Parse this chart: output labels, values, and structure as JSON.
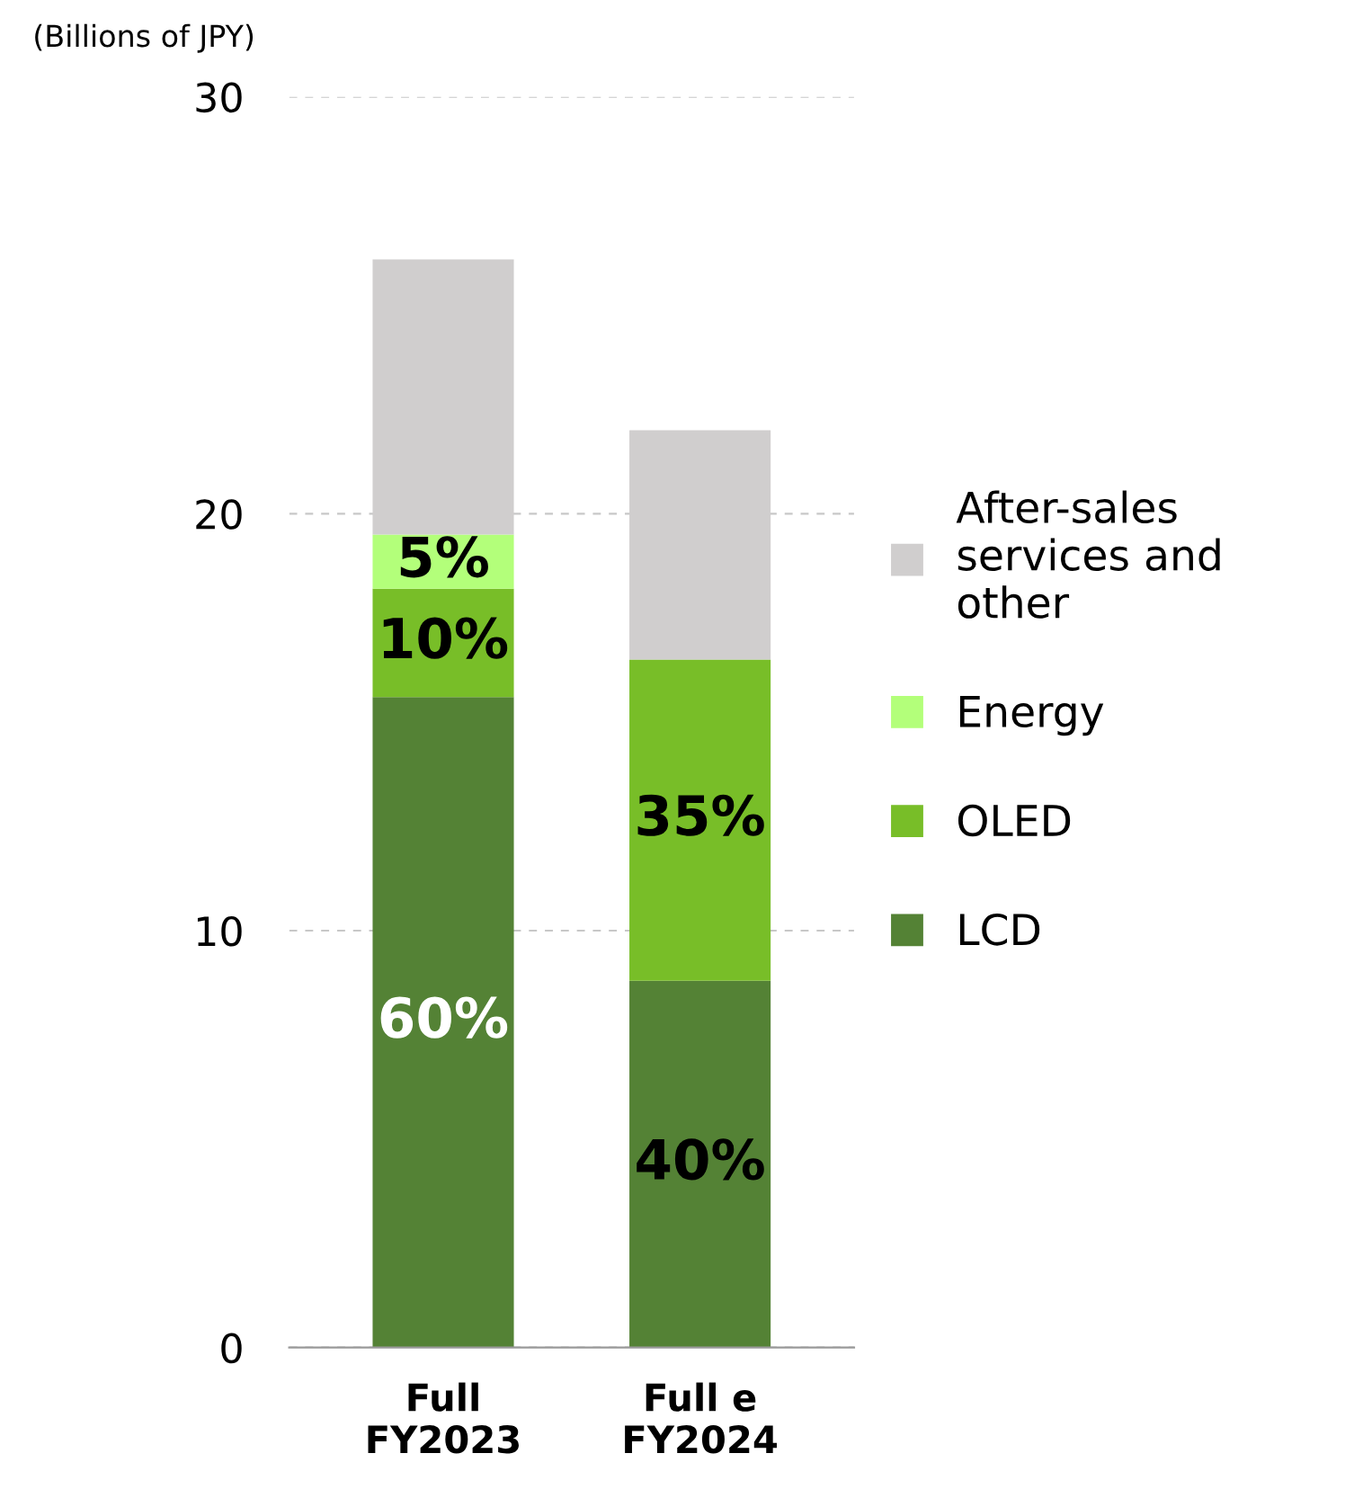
{
  "chart_data": {
    "type": "bar",
    "stacked": true,
    "ylabel": "(Billions of JPY)",
    "categories": [
      "Full\nFY2023",
      "Full e\nFY2024"
    ],
    "series": [
      {
        "name": "LCD",
        "color": "#548235",
        "values": [
          15.6,
          8.8
        ]
      },
      {
        "name": "OLED",
        "color": "#78be28",
        "values": [
          2.6,
          7.7
        ]
      },
      {
        "name": "Energy",
        "color": "#b3ff7a",
        "values": [
          1.3,
          0
        ]
      },
      {
        "name": "After-sales\nservices and\nother",
        "color": "#d0cece",
        "values": [
          6.6,
          5.5
        ]
      }
    ],
    "annotations": [
      "60%",
      "10%",
      "5%",
      "40%",
      "35%"
    ],
    "ylim": [
      0,
      30
    ],
    "yticks": [
      0,
      10,
      20,
      30
    ],
    "grid": "y",
    "legend": "right"
  }
}
